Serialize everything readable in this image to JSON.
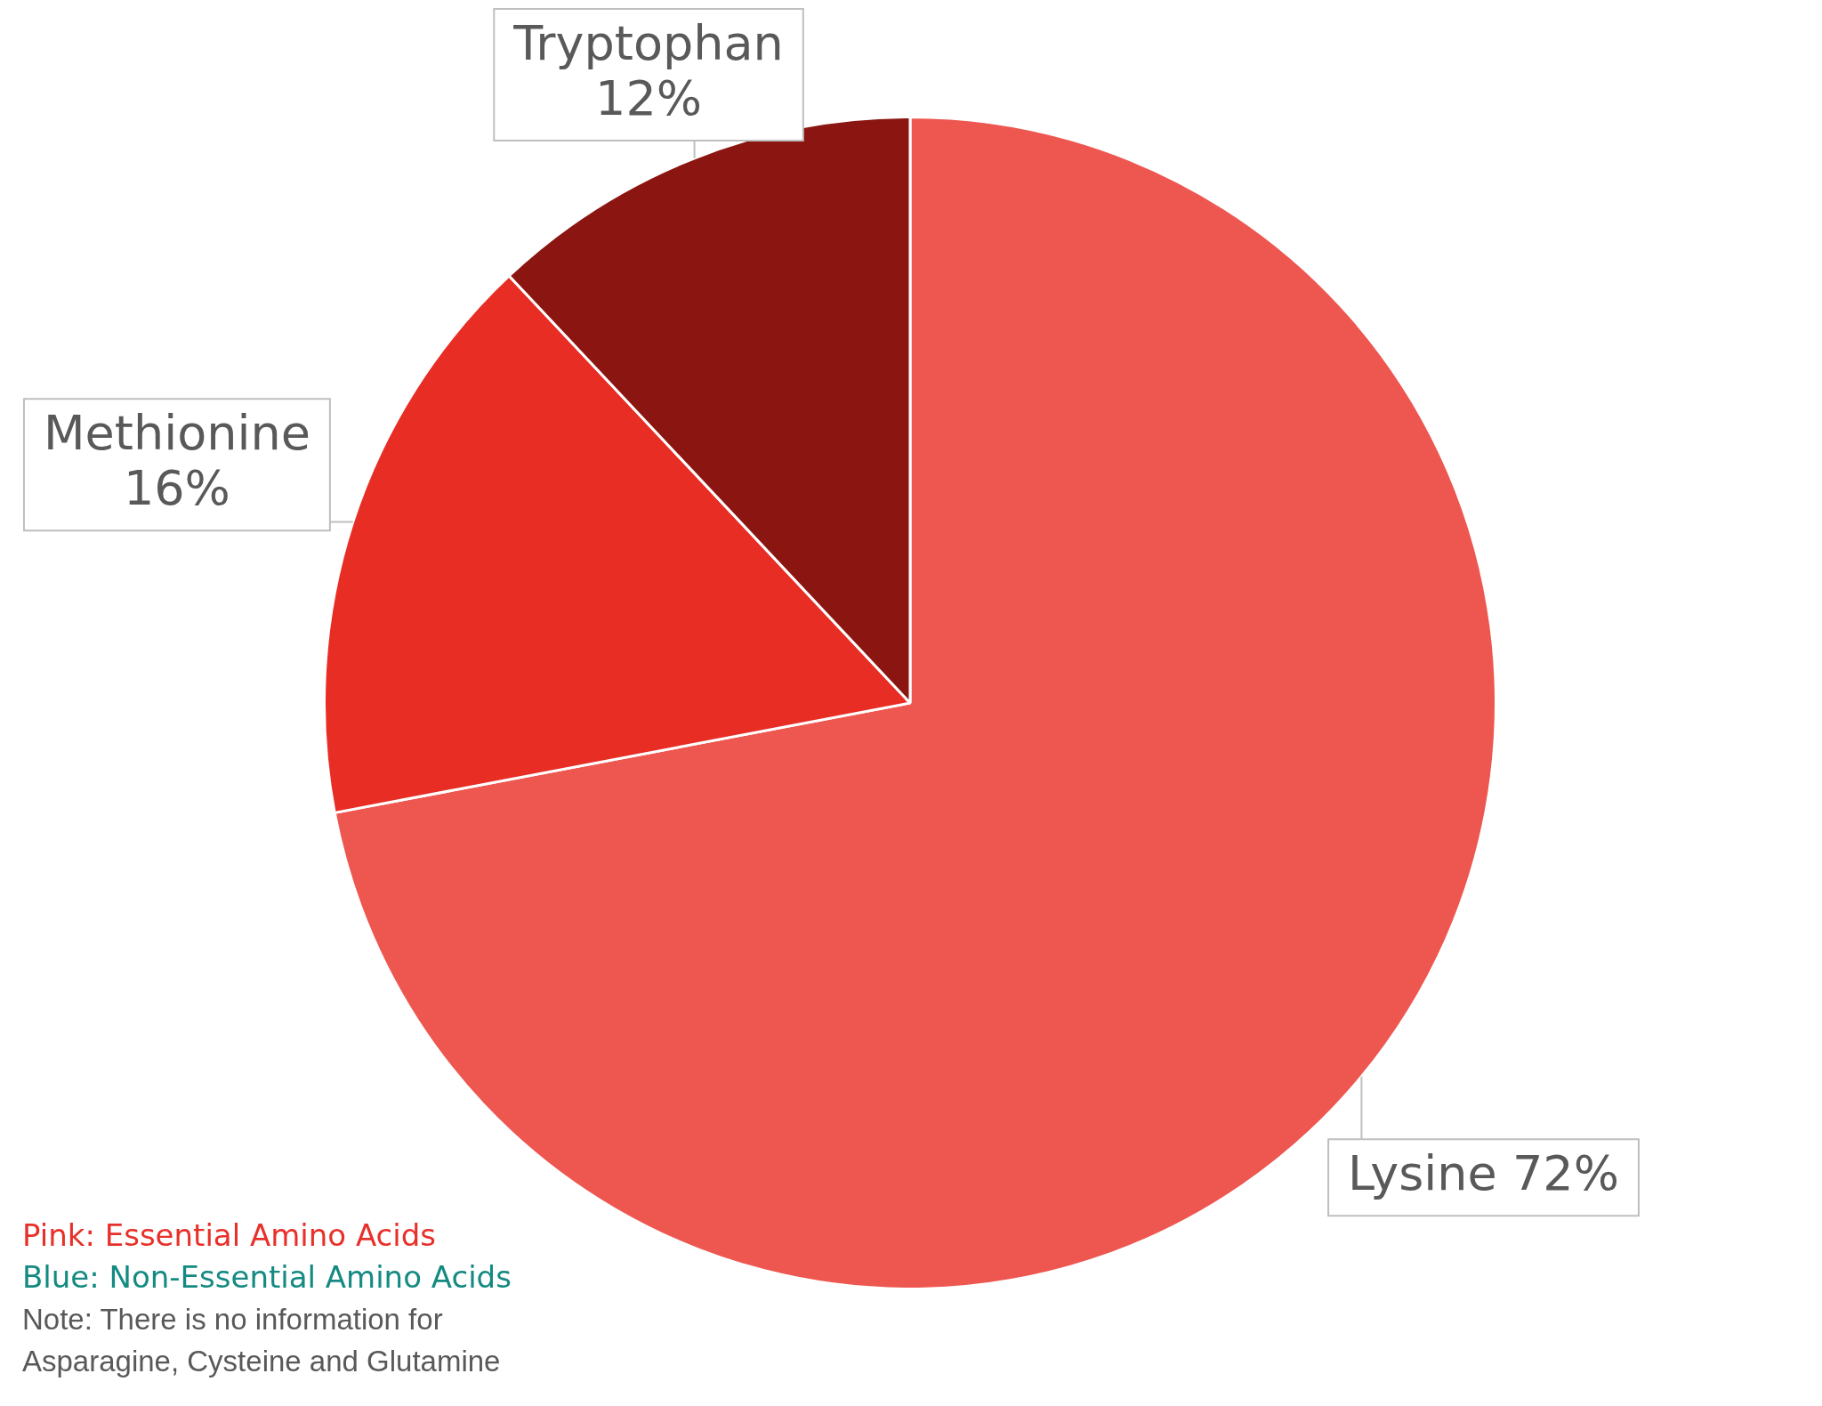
{
  "chart_data": {
    "type": "pie",
    "categories": [
      "Lysine",
      "Methionine",
      "Tryptophan"
    ],
    "values": [
      72,
      16,
      12
    ],
    "colors": [
      "#ee5650",
      "#e82d25",
      "#8b1510"
    ],
    "value_labels": [
      "72%",
      "16%",
      "12%"
    ],
    "legend": false,
    "annotations": [
      "Pink: Essential Amino Acids",
      "Blue: Non-Essential Amino Acids",
      "Note: There is no information for Asparagine, Cysteine and Glutamine"
    ]
  }
}
